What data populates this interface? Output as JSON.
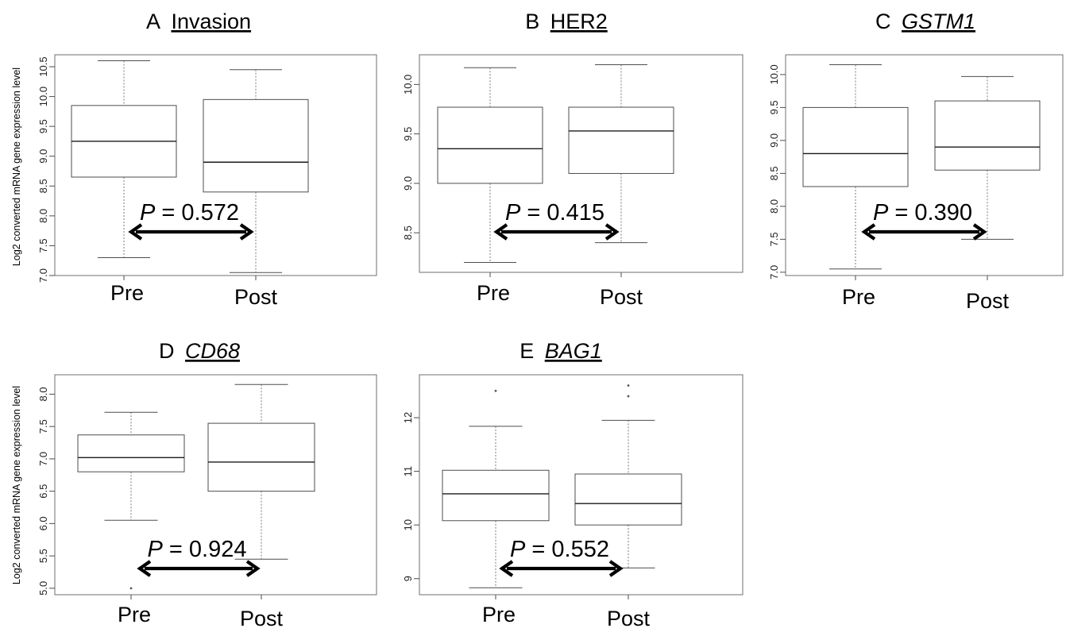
{
  "figure": {
    "ylabel_text": "Log2 converted mRNA gene expression level"
  },
  "chart_data": [
    {
      "type": "box",
      "panel_letter": "A",
      "title": "Invasion",
      "title_italic": false,
      "ylabel": "Log2 converted mRNA gene expression level",
      "categories": [
        "Pre",
        "Post"
      ],
      "boxes": [
        {
          "category": "Pre",
          "min": 7.3,
          "q1": 8.65,
          "median": 9.25,
          "q3": 9.85,
          "max": 10.6,
          "outliers": []
        },
        {
          "category": "Post",
          "min": 7.05,
          "q1": 8.4,
          "median": 8.9,
          "q3": 9.95,
          "max": 10.45,
          "outliers": []
        }
      ],
      "ylim": [
        7.0,
        10.7
      ],
      "yticks": [
        7.0,
        7.5,
        8.0,
        8.5,
        9.0,
        9.5,
        10.0,
        10.5
      ],
      "ytick_labels": [
        "7.0",
        "7.5",
        "8.0",
        "8.5",
        "9.0",
        "9.5",
        "10.0",
        "10.5"
      ],
      "annotation": {
        "p_label": "P",
        "p_text": " = 0.572"
      }
    },
    {
      "type": "box",
      "panel_letter": "B",
      "title": "HER2",
      "title_italic": false,
      "ylabel": "",
      "categories": [
        "Pre",
        "Post"
      ],
      "boxes": [
        {
          "category": "Pre",
          "min": 8.2,
          "q1": 9.0,
          "median": 9.35,
          "q3": 9.77,
          "max": 10.17,
          "outliers": []
        },
        {
          "category": "Post",
          "min": 8.4,
          "q1": 9.1,
          "median": 9.53,
          "q3": 9.77,
          "max": 10.2,
          "outliers": []
        }
      ],
      "ylim": [
        8.1,
        10.3
      ],
      "yticks": [
        8.5,
        9.0,
        9.5,
        10.0
      ],
      "ytick_labels": [
        "8.5",
        "9.0",
        "9.5",
        "10.0"
      ],
      "annotation": {
        "p_label": "P",
        "p_text": " = 0.415"
      }
    },
    {
      "type": "box",
      "panel_letter": "C",
      "title": "GSTM1",
      "title_italic": true,
      "ylabel": "",
      "categories": [
        "Pre",
        "Post"
      ],
      "boxes": [
        {
          "category": "Pre",
          "min": 7.05,
          "q1": 8.3,
          "median": 8.8,
          "q3": 9.5,
          "max": 10.15,
          "outliers": []
        },
        {
          "category": "Post",
          "min": 7.5,
          "q1": 8.55,
          "median": 8.9,
          "q3": 9.6,
          "max": 9.97,
          "outliers": []
        }
      ],
      "ylim": [
        6.95,
        10.3
      ],
      "yticks": [
        7.0,
        7.5,
        8.0,
        8.5,
        9.0,
        9.5,
        10.0
      ],
      "ytick_labels": [
        "7.0",
        "7.5",
        "8.0",
        "8.5",
        "9.0",
        "9.5",
        "10.0"
      ],
      "annotation": {
        "p_label": "P",
        "p_text": " = 0.390"
      }
    },
    {
      "type": "box",
      "panel_letter": "D",
      "title": "CD68",
      "title_italic": true,
      "ylabel": "Log2 converted mRNA gene expression level",
      "categories": [
        "Pre",
        "Post"
      ],
      "boxes": [
        {
          "category": "Pre",
          "min": 6.05,
          "q1": 6.8,
          "median": 7.02,
          "q3": 7.37,
          "max": 7.72,
          "outliers": [
            5.0
          ]
        },
        {
          "category": "Post",
          "min": 5.45,
          "q1": 6.5,
          "median": 6.95,
          "q3": 7.55,
          "max": 8.15,
          "outliers": []
        }
      ],
      "ylim": [
        4.9,
        8.3
      ],
      "yticks": [
        5.0,
        5.5,
        6.0,
        6.5,
        7.0,
        7.5,
        8.0
      ],
      "ytick_labels": [
        "5.0",
        "5.5",
        "6.0",
        "6.5",
        "7.0",
        "7.5",
        "8.0"
      ],
      "annotation": {
        "p_label": "P",
        "p_text": " = 0.924"
      }
    },
    {
      "type": "box",
      "panel_letter": "E",
      "title": "BAG1",
      "title_italic": true,
      "ylabel": "",
      "categories": [
        "Pre",
        "Post"
      ],
      "boxes": [
        {
          "category": "Pre",
          "min": 8.83,
          "q1": 10.08,
          "median": 10.58,
          "q3": 11.02,
          "max": 11.84,
          "outliers": [
            12.5
          ]
        },
        {
          "category": "Post",
          "min": 9.2,
          "q1": 10.0,
          "median": 10.4,
          "q3": 10.95,
          "max": 11.95,
          "outliers": [
            12.4,
            12.6
          ]
        }
      ],
      "ylim": [
        8.7,
        12.8
      ],
      "yticks": [
        9,
        10,
        11,
        12
      ],
      "ytick_labels": [
        "9",
        "10",
        "11",
        "12"
      ],
      "annotation": {
        "p_label": "P",
        "p_text": " = 0.552"
      }
    }
  ]
}
